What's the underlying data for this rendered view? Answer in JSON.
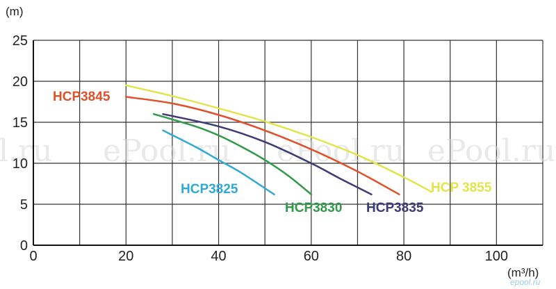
{
  "chart_data": {
    "type": "line",
    "ylabel": "(m)",
    "xlabel": "(m³/h)",
    "xlim": [
      0,
      110
    ],
    "ylim": [
      0,
      25
    ],
    "x_ticks": [
      0,
      20,
      40,
      60,
      80,
      100
    ],
    "y_ticks": [
      0,
      5,
      10,
      15,
      20,
      25
    ],
    "grid": true,
    "series": [
      {
        "name": "HCP3845",
        "color": "#e0502a",
        "points": [
          [
            20,
            18.1
          ],
          [
            30,
            17.3
          ],
          [
            40,
            15.9
          ],
          [
            50,
            14.0
          ],
          [
            60,
            11.7
          ],
          [
            70,
            9.0
          ],
          [
            79,
            6.2
          ]
        ]
      },
      {
        "name": "HCP 3855",
        "color": "#e3e34a",
        "points": [
          [
            20,
            19.5
          ],
          [
            30,
            18.2
          ],
          [
            40,
            16.7
          ],
          [
            50,
            15.1
          ],
          [
            60,
            13.2
          ],
          [
            70,
            11.0
          ],
          [
            80,
            8.3
          ],
          [
            86,
            6.5
          ]
        ]
      },
      {
        "name": "HCP3825",
        "color": "#2ea9d8",
        "points": [
          [
            28,
            14.0
          ],
          [
            35,
            12.0
          ],
          [
            40,
            10.4
          ],
          [
            45,
            8.8
          ],
          [
            52,
            6.2
          ]
        ]
      },
      {
        "name": "HCP3830",
        "color": "#2f9a48",
        "points": [
          [
            26,
            16.0
          ],
          [
            35,
            14.5
          ],
          [
            40,
            13.4
          ],
          [
            45,
            12.0
          ],
          [
            50,
            10.4
          ],
          [
            55,
            8.5
          ],
          [
            60,
            6.2
          ]
        ]
      },
      {
        "name": "HCP3835",
        "color": "#3b3b7a",
        "points": [
          [
            28,
            16.0
          ],
          [
            40,
            14.5
          ],
          [
            50,
            12.6
          ],
          [
            60,
            10.0
          ],
          [
            66,
            8.2
          ],
          [
            73,
            6.2
          ]
        ]
      }
    ]
  },
  "watermark": {
    "texts": [
      "l.ru",
      "ePool.ru",
      "ePool.ru",
      "ePool.ru"
    ],
    "corner": "epool.ru"
  }
}
